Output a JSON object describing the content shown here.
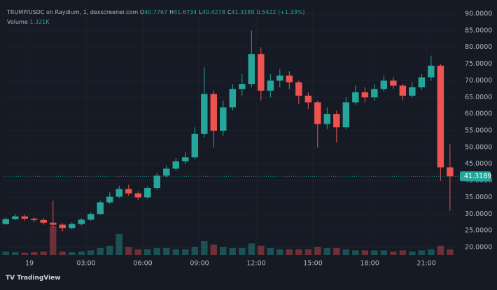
{
  "chart_data": {
    "type": "candlestick",
    "title": "TRUMP/USDC on Raydium, 1, dexscreener.com",
    "ohlc_legend": [
      {
        "key": "O",
        "value": "40.7767"
      },
      {
        "key": "H",
        "value": "41.6734"
      },
      {
        "key": "L",
        "value": "40.4278"
      },
      {
        "key": "C",
        "value": "41.3189"
      }
    ],
    "change": "0.5422 (+1.33%)",
    "volume_label": "Volume",
    "volume_value": "1.321K",
    "x": [
      -1.25,
      -0.75,
      -0.25,
      0.25,
      0.75,
      1.25,
      1.75,
      2.25,
      2.75,
      3.25,
      3.75,
      4.25,
      4.75,
      5.25,
      5.75,
      6.25,
      6.75,
      7.25,
      7.75,
      8.25,
      8.75,
      9.25,
      9.75,
      10.25,
      10.75,
      11.25,
      11.75,
      12.25,
      12.75,
      13.25,
      13.75,
      14.25,
      14.75,
      15.25,
      15.75,
      16.25,
      16.75,
      17.25,
      17.75,
      18.25,
      18.75,
      19.25,
      19.75,
      20.25,
      20.75,
      21.25,
      21.75,
      22.25
    ],
    "open": [
      27,
      28.5,
      29.3,
      28.6,
      28.2,
      27.4,
      26.8,
      25.8,
      27,
      28.3,
      30,
      33.5,
      35.2,
      37.5,
      36.2,
      35,
      37.8,
      41.5,
      43.6,
      45.8,
      47,
      54,
      66,
      55,
      62,
      67.5,
      69,
      78,
      67,
      70,
      71.5,
      69.5,
      65.5,
      63.5,
      57,
      60,
      56,
      63.5,
      66.5,
      65,
      67.5,
      70,
      68.5,
      65.5,
      68,
      71,
      74.5,
      44
    ],
    "high": [
      29,
      30,
      29.8,
      29,
      28.8,
      34,
      27.3,
      27.5,
      28.8,
      30.6,
      34,
      36.5,
      38.5,
      38.8,
      36.8,
      38.3,
      42.3,
      44.5,
      46.8,
      48.5,
      56,
      74,
      67,
      64,
      69,
      72,
      85,
      80,
      72,
      73.5,
      72.8,
      70,
      66.5,
      64,
      62,
      61,
      65,
      68.5,
      68,
      69,
      71.5,
      71,
      69,
      69.5,
      72,
      77.5,
      75,
      51
    ],
    "low": [
      26.8,
      28.2,
      28,
      27.5,
      26.8,
      26,
      24.8,
      25.4,
      26.6,
      28,
      29.8,
      33,
      34.8,
      35.5,
      34.2,
      34.6,
      37.2,
      41,
      43,
      45,
      46.5,
      53,
      50,
      53.5,
      61,
      65.5,
      68,
      64,
      65,
      68,
      67.5,
      63,
      61.5,
      50,
      55.5,
      51.5,
      55.5,
      62.8,
      63.5,
      64,
      66.8,
      67.5,
      64,
      65,
      67.2,
      70,
      40,
      31
    ],
    "close": [
      28.5,
      29.3,
      28.6,
      28.2,
      27.4,
      26.8,
      25.8,
      27,
      28.3,
      30,
      33.5,
      35.2,
      37.5,
      36.2,
      35,
      37.8,
      41.5,
      43.6,
      45.8,
      47,
      54,
      66,
      55,
      62,
      67.5,
      69,
      78,
      67,
      70,
      71.5,
      69.5,
      65.5,
      63.5,
      57,
      60,
      56,
      63.5,
      66.5,
      65,
      67.5,
      70,
      68.5,
      65.5,
      68,
      71,
      74.5,
      44,
      41.3
    ],
    "volume": [
      3,
      2.5,
      2,
      2.5,
      3,
      25,
      3,
      2.5,
      3,
      4,
      6,
      8,
      18,
      7,
      5,
      5,
      6,
      6,
      5,
      5,
      7,
      12,
      9,
      7,
      6,
      6,
      10,
      8,
      6,
      5,
      5,
      5,
      5,
      7,
      6,
      6,
      5,
      4,
      4,
      4,
      4,
      3,
      4,
      3,
      4,
      5,
      8,
      5
    ],
    "volume_lim": [
      0,
      60
    ],
    "up_color": "#26a69a",
    "down_color": "#ef5350",
    "xlim": [
      -1.37,
      22.7
    ],
    "xticks": [
      {
        "value": 0,
        "label": "19"
      },
      {
        "value": 3,
        "label": "03:00"
      },
      {
        "value": 6,
        "label": "06:00"
      },
      {
        "value": 9,
        "label": "09:00"
      },
      {
        "value": 12,
        "label": "12:00"
      },
      {
        "value": 15,
        "label": "15:00"
      },
      {
        "value": 18,
        "label": "18:00"
      },
      {
        "value": 21,
        "label": "21:00"
      }
    ],
    "ylim": [
      20,
      90
    ],
    "yticks": [
      {
        "value": 20,
        "label": "20.0000"
      },
      {
        "value": 25,
        "label": "25.0000"
      },
      {
        "value": 30,
        "label": "30.0000"
      },
      {
        "value": 35,
        "label": "35.0000"
      },
      {
        "value": 40,
        "label": "40.0000"
      },
      {
        "value": 45,
        "label": "45.0000"
      },
      {
        "value": 50,
        "label": "50.0000"
      },
      {
        "value": 55,
        "label": "55.0000"
      },
      {
        "value": 60,
        "label": "60.0000"
      },
      {
        "value": 65,
        "label": "65.0000"
      },
      {
        "value": 70,
        "label": "70.0000"
      },
      {
        "value": 75,
        "label": "75.0000"
      },
      {
        "value": 80,
        "label": "80.0000"
      },
      {
        "value": 85,
        "label": "85.0000"
      },
      {
        "value": 90,
        "label": "90.0000"
      }
    ],
    "last_price": 41.3189,
    "grid": true
  },
  "branding": "TradingView"
}
